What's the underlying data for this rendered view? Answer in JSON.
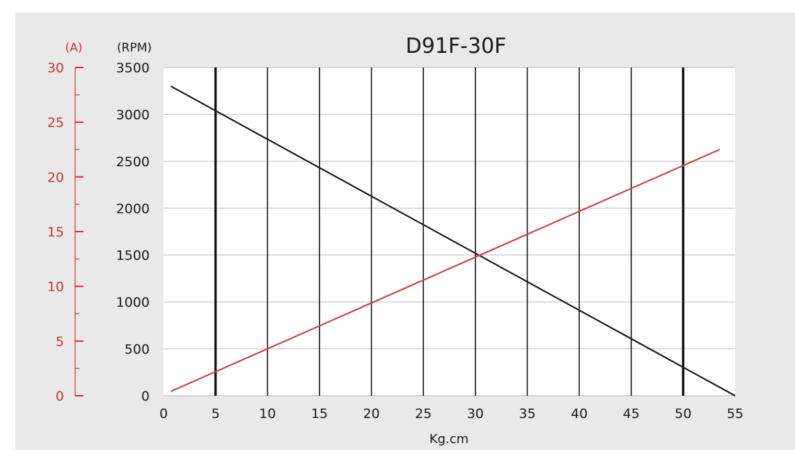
{
  "chart_data": {
    "type": "line",
    "title": "D91F-30F",
    "xlabel": "Kg.cm",
    "ylabel_left_outer": "(A)",
    "ylabel_left_inner": "(RPM)",
    "xlim": [
      0,
      55
    ],
    "ylim_rpm": [
      0,
      3500
    ],
    "ylim_a": [
      0,
      30
    ],
    "x_ticks": [
      "0",
      "5",
      "10",
      "15",
      "20",
      "25",
      "30",
      "35",
      "40",
      "45",
      "50",
      "55"
    ],
    "rpm_ticks": [
      "0",
      "500",
      "1000",
      "1500",
      "2000",
      "2500",
      "3000",
      "3500"
    ],
    "a_ticks": [
      "0",
      "5",
      "10",
      "15",
      "20",
      "25",
      "30"
    ],
    "grid": true,
    "bold_vertical_lines_at": [
      5,
      50
    ],
    "series": [
      {
        "axis": "rpm",
        "color": "#1a1a1a",
        "x": [
          0.7,
          55
        ],
        "y": [
          3300,
          0
        ]
      },
      {
        "axis": "a",
        "color": "#cc4444",
        "x": [
          0.7,
          53.5
        ],
        "y": [
          0.4,
          22.5
        ]
      }
    ]
  }
}
